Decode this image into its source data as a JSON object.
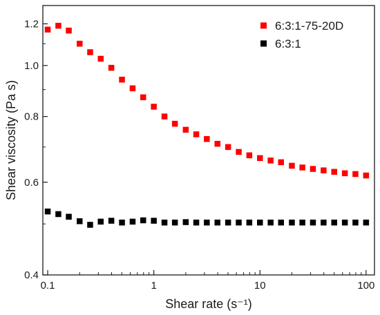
{
  "chart_data": {
    "type": "scatter",
    "xlabel": "Shear rate (s⁻¹)",
    "ylabel": "Shear viscosity (Pa s)",
    "xscale": "log",
    "yscale": "log",
    "xlim": [
      0.09,
      120
    ],
    "ylim": [
      0.4,
      1.3
    ],
    "x_ticks": [
      {
        "value": 0.1,
        "label": "0.1"
      },
      {
        "value": 1,
        "label": "1"
      },
      {
        "value": 10,
        "label": "10"
      },
      {
        "value": 100,
        "label": "100"
      }
    ],
    "y_ticks": [
      {
        "value": 0.4,
        "label": "0.4"
      },
      {
        "value": 0.6,
        "label": "0.6"
      },
      {
        "value": 0.8,
        "label": "0.8"
      },
      {
        "value": 1.0,
        "label": "1.0"
      },
      {
        "value": 1.2,
        "label": "1.2"
      }
    ],
    "grid": false,
    "legend_position": "top-right",
    "series": [
      {
        "name": "6:3:1-75-20D",
        "color": "#ff0000",
        "marker": "square",
        "x": [
          0.1,
          0.126,
          0.158,
          0.2,
          0.251,
          0.316,
          0.398,
          0.501,
          0.631,
          0.794,
          1.0,
          1.26,
          1.58,
          2.0,
          2.51,
          3.16,
          3.98,
          5.01,
          6.31,
          7.94,
          10.0,
          12.6,
          15.8,
          20.0,
          25.1,
          31.6,
          39.8,
          50.1,
          63.1,
          79.4,
          100.0
        ],
        "y": [
          1.17,
          1.19,
          1.165,
          1.1,
          1.06,
          1.03,
          0.99,
          0.94,
          0.905,
          0.87,
          0.835,
          0.8,
          0.775,
          0.755,
          0.74,
          0.725,
          0.71,
          0.7,
          0.685,
          0.675,
          0.667,
          0.66,
          0.655,
          0.645,
          0.64,
          0.636,
          0.632,
          0.628,
          0.624,
          0.622,
          0.618
        ]
      },
      {
        "name": "6:3:1",
        "color": "#000000",
        "marker": "square",
        "x": [
          0.1,
          0.126,
          0.158,
          0.2,
          0.251,
          0.316,
          0.398,
          0.501,
          0.631,
          0.794,
          1.0,
          1.26,
          1.58,
          2.0,
          2.51,
          3.16,
          3.98,
          5.01,
          6.31,
          7.94,
          10.0,
          12.6,
          15.8,
          20.0,
          25.1,
          31.6,
          39.8,
          50.1,
          63.1,
          79.4,
          100.0
        ],
        "y": [
          0.528,
          0.522,
          0.516,
          0.506,
          0.498,
          0.505,
          0.507,
          0.503,
          0.505,
          0.508,
          0.507,
          0.503,
          0.503,
          0.504,
          0.503,
          0.503,
          0.503,
          0.503,
          0.503,
          0.503,
          0.503,
          0.503,
          0.503,
          0.503,
          0.503,
          0.503,
          0.503,
          0.503,
          0.503,
          0.503,
          0.503
        ]
      }
    ]
  }
}
